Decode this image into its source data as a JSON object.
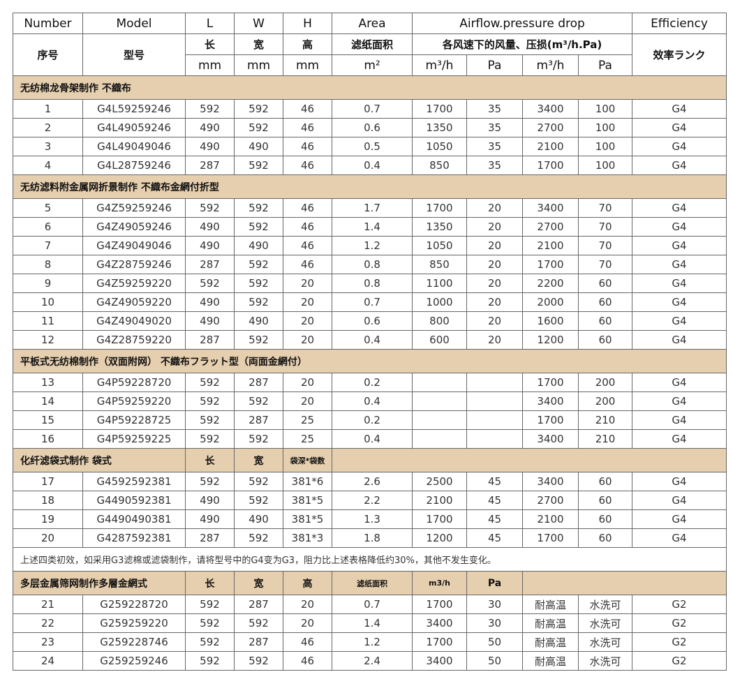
{
  "header": {
    "en": [
      "Number",
      "Model",
      "L",
      "W",
      "H",
      "Area",
      "Airflow.pressure drop",
      "Efficiency"
    ],
    "cn": [
      "序号",
      "型号",
      "长",
      "宽",
      "高",
      "滤纸面积",
      "各风速下的风量、压损(m³/h.Pa)",
      "效率ランク"
    ],
    "units": [
      "mm",
      "mm",
      "mm",
      "m²",
      "m³/h",
      "Pa",
      "m³/h",
      "Pa"
    ]
  },
  "sections": [
    {
      "title": "无纺棉龙骨架制作 不織布",
      "cells": [],
      "rows": [
        [
          "1",
          "G4L59259246",
          "592",
          "592",
          "46",
          "0.7",
          "1700",
          "35",
          "3400",
          "100",
          "G4"
        ],
        [
          "2",
          "G4L49059246",
          "490",
          "592",
          "46",
          "0.6",
          "1350",
          "35",
          "2700",
          "100",
          "G4"
        ],
        [
          "3",
          "G4L49049046",
          "490",
          "490",
          "46",
          "0.5",
          "1050",
          "35",
          "2100",
          "100",
          "G4"
        ],
        [
          "4",
          "G4L28759246",
          "287",
          "592",
          "46",
          "0.4",
          "850",
          "35",
          "1700",
          "100",
          "G4"
        ]
      ]
    },
    {
      "title": "无纺滤料附金属网折景制作  不織布金網付折型",
      "cells": [],
      "rows": [
        [
          "5",
          "G4Z59259246",
          "592",
          "592",
          "46",
          "1.7",
          "1700",
          "20",
          "3400",
          "70",
          "G4"
        ],
        [
          "6",
          "G4Z49059246",
          "490",
          "592",
          "46",
          "1.4",
          "1350",
          "20",
          "2700",
          "70",
          "G4"
        ],
        [
          "7",
          "G4Z49049046",
          "490",
          "490",
          "46",
          "1.2",
          "1050",
          "20",
          "2100",
          "70",
          "G4"
        ],
        [
          "8",
          "G4Z28759246",
          "287",
          "592",
          "46",
          "0.8",
          "850",
          "20",
          "1700",
          "70",
          "G4"
        ],
        [
          "9",
          "G4Z59259220",
          "592",
          "592",
          "20",
          "0.8",
          "1100",
          "20",
          "2200",
          "60",
          "G4"
        ],
        [
          "10",
          "G4Z49059220",
          "490",
          "592",
          "20",
          "0.7",
          "1000",
          "20",
          "2000",
          "60",
          "G4"
        ],
        [
          "11",
          "G4Z49049020",
          "490",
          "490",
          "20",
          "0.6",
          "800",
          "20",
          "1600",
          "60",
          "G4"
        ],
        [
          "12",
          "G4Z28759220",
          "287",
          "592",
          "20",
          "0.4",
          "600",
          "20",
          "1200",
          "60",
          "G4"
        ]
      ]
    },
    {
      "title": "平板式无纺棉制作（双面附网） 不織布フラット型（両面金網付）",
      "cells": [],
      "rows": [
        [
          "13",
          "G4P59228720",
          "592",
          "287",
          "20",
          "0.2",
          "",
          "",
          "1700",
          "200",
          "G4"
        ],
        [
          "14",
          "G4P59259220",
          "592",
          "592",
          "20",
          "0.4",
          "",
          "",
          "3400",
          "200",
          "G4"
        ],
        [
          "15",
          "G4P59228725",
          "592",
          "287",
          "25",
          "0.2",
          "",
          "",
          "1700",
          "210",
          "G4"
        ],
        [
          "16",
          "G4P59259225",
          "592",
          "592",
          "25",
          "0.4",
          "",
          "",
          "3400",
          "210",
          "G4"
        ]
      ]
    },
    {
      "title": "化纤滤袋式制作 袋式",
      "cells": [
        "长",
        "宽",
        "袋深*袋数"
      ],
      "rows": [
        [
          "17",
          "G4592592381",
          "592",
          "592",
          "381*6",
          "2.6",
          "2500",
          "45",
          "3400",
          "60",
          "G4"
        ],
        [
          "18",
          "G4490592381",
          "490",
          "592",
          "381*5",
          "2.2",
          "2100",
          "45",
          "2700",
          "60",
          "G4"
        ],
        [
          "19",
          "G4490490381",
          "490",
          "490",
          "381*5",
          "1.3",
          "1700",
          "45",
          "2100",
          "60",
          "G4"
        ],
        [
          "20",
          "G4287592381",
          "287",
          "592",
          "381*3",
          "1.8",
          "1200",
          "45",
          "1700",
          "60",
          "G4"
        ]
      ],
      "note": "上述四类初效，如采用G3滤棉或滤袋制作，请将型号中的G4变为G3，阻力比上述表格降低约30%，其他不发生变化。"
    },
    {
      "title": "多层金属筛网制作多層金網式",
      "cells": [
        "长",
        "宽",
        "高",
        "滤纸面积",
        "m3/h",
        "Pa"
      ],
      "rows": [
        [
          "21",
          "G259228720",
          "592",
          "287",
          "20",
          "0.7",
          "1700",
          "30",
          "耐高温",
          "水洗可",
          "G2"
        ],
        [
          "22",
          "G259259220",
          "592",
          "592",
          "20",
          "1.4",
          "3400",
          "30",
          "耐高温",
          "水洗可",
          "G2"
        ],
        [
          "23",
          "G259228746",
          "592",
          "287",
          "46",
          "1.2",
          "1700",
          "50",
          "耐高温",
          "水洗可",
          "G2"
        ],
        [
          "24",
          "G259259246",
          "592",
          "592",
          "46",
          "2.4",
          "3400",
          "50",
          "耐高温",
          "水洗可",
          "G2"
        ]
      ]
    }
  ],
  "colors": {
    "section_bg": "#e6cfaf",
    "border": "#666666"
  }
}
